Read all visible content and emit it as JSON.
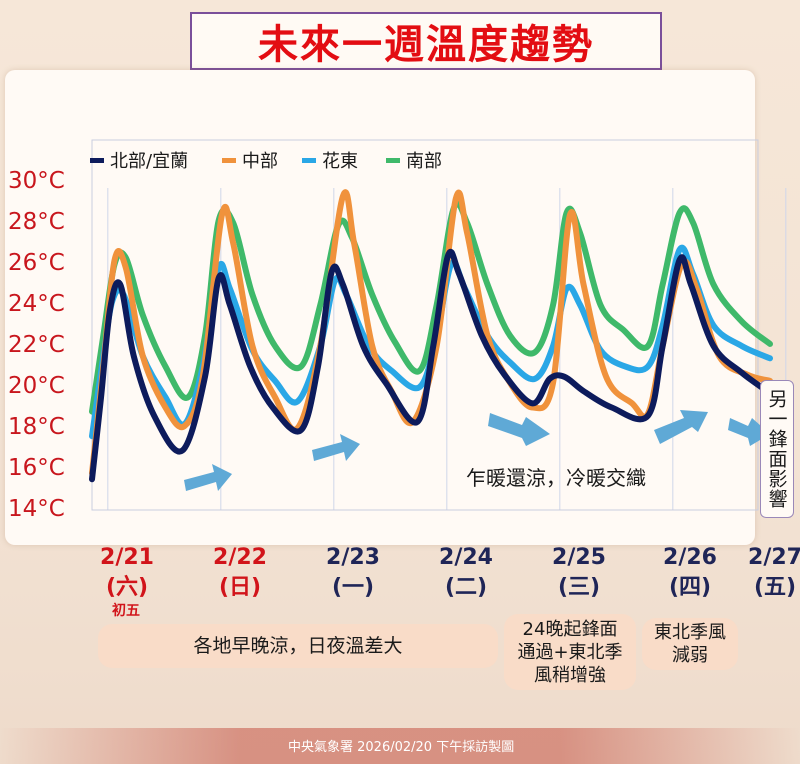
{
  "title": "未來一週溫度趨勢",
  "chart_data": {
    "type": "line",
    "ylim": [
      14,
      30
    ],
    "y_ticks": [
      "30°C",
      "28°C",
      "26°C",
      "24°C",
      "22°C",
      "20°C",
      "18°C",
      "16°C",
      "14°C"
    ],
    "x_days": [
      "2/21",
      "2/22",
      "2/23",
      "2/24",
      "2/25",
      "2/26",
      "2/27"
    ],
    "colors": {
      "north": "#0d1b5c",
      "central": "#f0923c",
      "east": "#2aa7e6",
      "south": "#3fb96a"
    },
    "legend": [
      "北部/宜蘭",
      "中部",
      "花東",
      "南部"
    ],
    "series": [
      {
        "name": "北部/宜蘭",
        "key": "north",
        "points": [
          [
            0,
            15.5
          ],
          [
            0.08,
            19.5
          ],
          [
            0.16,
            23.8
          ],
          [
            0.25,
            25.0
          ],
          [
            0.37,
            21.5
          ],
          [
            0.55,
            18.6
          ],
          [
            0.8,
            16.9
          ],
          [
            1.0,
            20.5
          ],
          [
            1.12,
            25.3
          ],
          [
            1.22,
            24.0
          ],
          [
            1.4,
            21.0
          ],
          [
            1.6,
            19.0
          ],
          [
            1.85,
            17.9
          ],
          [
            2.0,
            21.0
          ],
          [
            2.12,
            25.6
          ],
          [
            2.22,
            25.0
          ],
          [
            2.4,
            22.0
          ],
          [
            2.6,
            20.2
          ],
          [
            2.88,
            18.3
          ],
          [
            3.02,
            22.0
          ],
          [
            3.15,
            26.4
          ],
          [
            3.25,
            25.5
          ],
          [
            3.45,
            22.5
          ],
          [
            3.65,
            20.6
          ],
          [
            3.9,
            19.2
          ],
          [
            4.05,
            20.4
          ],
          [
            4.18,
            20.5
          ],
          [
            4.35,
            19.8
          ],
          [
            4.6,
            19.0
          ],
          [
            4.92,
            18.6
          ],
          [
            5.05,
            22.0
          ],
          [
            5.2,
            26.2
          ],
          [
            5.3,
            25.0
          ],
          [
            5.5,
            22.0
          ],
          [
            5.75,
            20.7
          ],
          [
            6.0,
            19.7
          ]
        ]
      },
      {
        "name": "中部",
        "key": "central",
        "points": [
          [
            0,
            15.8
          ],
          [
            0.1,
            21.0
          ],
          [
            0.2,
            26.2
          ],
          [
            0.3,
            25.8
          ],
          [
            0.45,
            21.5
          ],
          [
            0.65,
            19.0
          ],
          [
            0.82,
            18.1
          ],
          [
            0.98,
            20.5
          ],
          [
            1.15,
            28.4
          ],
          [
            1.25,
            27.0
          ],
          [
            1.42,
            22.0
          ],
          [
            1.62,
            19.5
          ],
          [
            1.82,
            18.0
          ],
          [
            2.02,
            22.0
          ],
          [
            2.22,
            29.3
          ],
          [
            2.32,
            27.0
          ],
          [
            2.48,
            22.0
          ],
          [
            2.65,
            19.8
          ],
          [
            2.84,
            18.3
          ],
          [
            3.05,
            22.0
          ],
          [
            3.22,
            29.2
          ],
          [
            3.32,
            27.5
          ],
          [
            3.5,
            22.5
          ],
          [
            3.7,
            20.2
          ],
          [
            3.9,
            19.0
          ],
          [
            4.08,
            20.2
          ],
          [
            4.23,
            28.4
          ],
          [
            4.35,
            25.0
          ],
          [
            4.55,
            20.5
          ],
          [
            4.78,
            19.2
          ],
          [
            4.92,
            18.7
          ],
          [
            5.05,
            22.0
          ],
          [
            5.22,
            26.0
          ],
          [
            5.35,
            24.8
          ],
          [
            5.55,
            21.5
          ],
          [
            5.8,
            20.6
          ],
          [
            6.0,
            20.3
          ]
        ]
      },
      {
        "name": "花東",
        "key": "east",
        "points": [
          [
            0,
            17.6
          ],
          [
            0.1,
            21.5
          ],
          [
            0.18,
            24.2
          ],
          [
            0.28,
            24.5
          ],
          [
            0.45,
            21.5
          ],
          [
            0.65,
            19.5
          ],
          [
            0.82,
            18.2
          ],
          [
            0.98,
            21.0
          ],
          [
            1.12,
            25.8
          ],
          [
            1.22,
            24.8
          ],
          [
            1.42,
            21.8
          ],
          [
            1.62,
            20.3
          ],
          [
            1.82,
            19.3
          ],
          [
            2.02,
            22.0
          ],
          [
            2.15,
            25.2
          ],
          [
            2.25,
            24.5
          ],
          [
            2.45,
            22.0
          ],
          [
            2.65,
            20.8
          ],
          [
            2.9,
            20.0
          ],
          [
            3.05,
            22.5
          ],
          [
            3.18,
            26.0
          ],
          [
            3.3,
            24.8
          ],
          [
            3.5,
            22.5
          ],
          [
            3.7,
            21.2
          ],
          [
            3.92,
            20.4
          ],
          [
            4.08,
            22.0
          ],
          [
            4.2,
            24.8
          ],
          [
            4.32,
            24.0
          ],
          [
            4.5,
            21.8
          ],
          [
            4.72,
            21.0
          ],
          [
            4.92,
            21.0
          ],
          [
            5.05,
            23.0
          ],
          [
            5.2,
            26.7
          ],
          [
            5.32,
            25.5
          ],
          [
            5.5,
            23.0
          ],
          [
            5.75,
            22.0
          ],
          [
            6.0,
            21.4
          ]
        ]
      },
      {
        "name": "南部",
        "key": "south",
        "points": [
          [
            0,
            18.8
          ],
          [
            0.1,
            22.5
          ],
          [
            0.2,
            26.0
          ],
          [
            0.3,
            26.3
          ],
          [
            0.45,
            23.5
          ],
          [
            0.65,
            21.0
          ],
          [
            0.85,
            19.5
          ],
          [
            1.0,
            22.5
          ],
          [
            1.12,
            28.1
          ],
          [
            1.25,
            28.0
          ],
          [
            1.42,
            24.5
          ],
          [
            1.62,
            22.0
          ],
          [
            1.85,
            21.0
          ],
          [
            2.02,
            24.0
          ],
          [
            2.18,
            27.9
          ],
          [
            2.3,
            27.3
          ],
          [
            2.48,
            24.5
          ],
          [
            2.68,
            22.2
          ],
          [
            2.9,
            20.8
          ],
          [
            3.05,
            24.0
          ],
          [
            3.2,
            28.7
          ],
          [
            3.32,
            28.0
          ],
          [
            3.5,
            25.0
          ],
          [
            3.7,
            22.5
          ],
          [
            3.92,
            21.7
          ],
          [
            4.08,
            24.0
          ],
          [
            4.2,
            28.5
          ],
          [
            4.32,
            27.5
          ],
          [
            4.5,
            24.0
          ],
          [
            4.7,
            22.8
          ],
          [
            4.92,
            22.0
          ],
          [
            5.05,
            25.0
          ],
          [
            5.2,
            28.5
          ],
          [
            5.32,
            28.0
          ],
          [
            5.5,
            25.0
          ],
          [
            5.75,
            23.2
          ],
          [
            6.0,
            22.1
          ]
        ]
      }
    ]
  },
  "annotation": "乍暖還涼，冷暖交織",
  "side_note": "另一鋒面影響",
  "dates": [
    {
      "date": "2/21",
      "weekday": "(六)",
      "color": "red"
    },
    {
      "date": "2/22",
      "weekday": "(日)",
      "color": "red"
    },
    {
      "date": "2/23",
      "weekday": "(一)",
      "color": "navy"
    },
    {
      "date": "2/24",
      "weekday": "(二)",
      "color": "navy"
    },
    {
      "date": "2/25",
      "weekday": "(三)",
      "color": "navy"
    },
    {
      "date": "2/26",
      "weekday": "(四)",
      "color": "navy"
    },
    {
      "date": "2/27",
      "weekday": "(五)",
      "color": "navy"
    }
  ],
  "lunar_note": "初五",
  "pills": {
    "p1": "各地早晚涼，日夜溫差大",
    "p2_l1": "24晚起鋒面",
    "p2_l2": "通過+東北季",
    "p2_l3": "風稍增強",
    "p3_l1": "東北季風",
    "p3_l2": "減弱"
  },
  "footer": "中央氣象署 2026/02/20 下午採訪製圖"
}
